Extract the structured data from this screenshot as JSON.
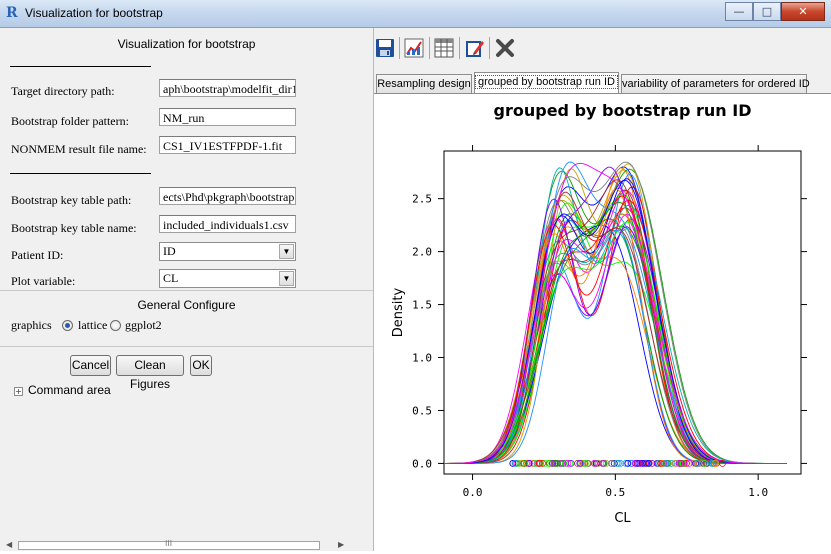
{
  "window": {
    "title": "Visualization for bootstrap",
    "app_icon": "R"
  },
  "left": {
    "heading": "Visualization for bootstrap",
    "fields": [
      {
        "label": "Target directory path:",
        "value": "aph\\bootstrap\\modelfit_dir1"
      },
      {
        "label": "Bootstrap folder pattern:",
        "value": "NM_run"
      },
      {
        "label": "NONMEM result file name:",
        "value": "CS1_IV1ESTFPDF-1.fit"
      },
      {
        "label": "Bootstrap key table path:",
        "value": "ects\\Phd\\pkgraph\\bootstrap"
      },
      {
        "label": "Bootstrap key table name:",
        "value": "included_individuals1.csv"
      }
    ],
    "patient_id": {
      "label": "Patient ID:",
      "value": "ID"
    },
    "plot_variable": {
      "label": "Plot variable:",
      "value": "CL"
    },
    "general_configure": {
      "title": "General Configure",
      "graphics_label": "graphics",
      "options": [
        "lattice",
        "ggplot2"
      ],
      "selected": "lattice"
    },
    "buttons": {
      "cancel": "Cancel",
      "clean": "Clean Figures",
      "ok": "OK"
    },
    "command_area": "Command area"
  },
  "toolbar": {
    "icons": [
      "save-icon",
      "export-icon",
      "table-icon",
      "edit-icon",
      "delete-icon"
    ]
  },
  "tabs": [
    {
      "label": "Resampling design",
      "active": false
    },
    {
      "label": "grouped by bootstrap run ID",
      "active": true
    },
    {
      "label": "variability of parameters for ordered ID",
      "active": false
    }
  ],
  "chart_data": {
    "type": "line",
    "title": "grouped by bootstrap run ID",
    "xlabel": "CL",
    "ylabel": "Density",
    "xlim": [
      -0.1,
      1.15
    ],
    "ylim": [
      -0.1,
      2.95
    ],
    "x_ticks": [
      "0.0",
      "0.5",
      "1.0"
    ],
    "y_ticks": [
      "0.0",
      "0.5",
      "1.0",
      "1.5",
      "2.0",
      "2.5"
    ],
    "n_series": 40,
    "series_template": {
      "components": [
        {
          "weight": 0.42,
          "mean": 0.3,
          "sd": 0.085
        },
        {
          "weight": 0.58,
          "mean": 0.53,
          "sd": 0.1
        }
      ],
      "peak_density_range": [
        2.2,
        2.85
      ]
    },
    "rug_x_range": [
      0.14,
      0.88
    ],
    "colors": [
      "#ff0000",
      "#00a000",
      "#0000ff",
      "#ff00ff",
      "#00b0b0",
      "#c8a000",
      "#ff8000",
      "#8000ff",
      "#808080",
      "#00ff00",
      "#a52a2a",
      "#1e90ff"
    ]
  }
}
